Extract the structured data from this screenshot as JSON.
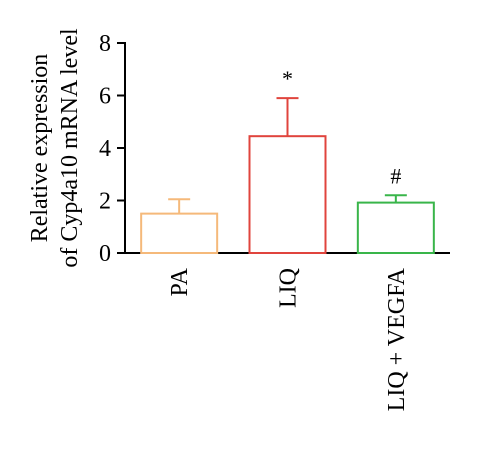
{
  "chart_data": {
    "type": "bar",
    "categories": [
      "PA",
      "LIQ",
      "LIQ + VEGFA"
    ],
    "values": [
      1.5,
      4.45,
      1.92
    ],
    "errors": [
      0.55,
      1.45,
      0.28
    ],
    "annotations": [
      "",
      "*",
      "#"
    ],
    "colors": [
      "#f5b97a",
      "#e0443d",
      "#39b54a"
    ],
    "ylabel_line1": "Relative expression",
    "ylabel_line2": "of Cyp4a10 mRNA level",
    "ylim": [
      0,
      8
    ],
    "yticks": [
      "0",
      "2",
      "4",
      "6",
      "8"
    ],
    "ytick_values": [
      0,
      2,
      4,
      6,
      8
    ],
    "grid": false,
    "legend": "none"
  }
}
